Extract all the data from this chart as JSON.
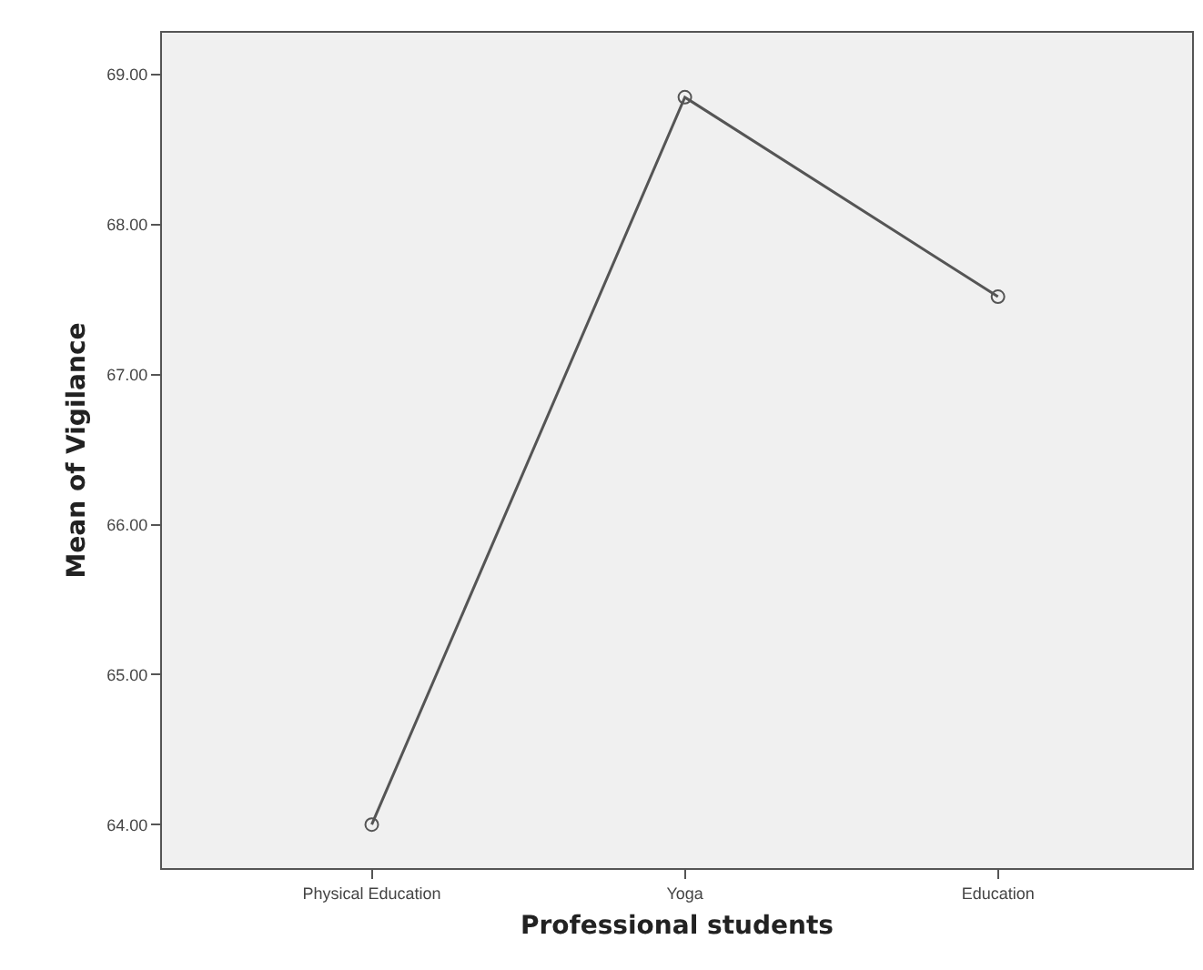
{
  "chart_data": {
    "type": "line",
    "xlabel": "Professional students",
    "ylabel": "Mean of Vigilance",
    "categories": [
      "Physical Education",
      "Yoga",
      "Education"
    ],
    "series": [
      {
        "color": "#555555",
        "values": [
          64.0,
          68.85,
          67.52
        ]
      }
    ],
    "ylim": [
      63.71,
      69.28
    ],
    "yticks": [
      {
        "value": 64,
        "label": "64.00"
      },
      {
        "value": 65,
        "label": "65.00"
      },
      {
        "value": 66,
        "label": "66.00"
      },
      {
        "value": 67,
        "label": "67.00"
      },
      {
        "value": 68,
        "label": "68.00"
      },
      {
        "value": 69,
        "label": "69.00"
      }
    ],
    "marker": "circle",
    "line_style": "solid",
    "grid": false
  }
}
